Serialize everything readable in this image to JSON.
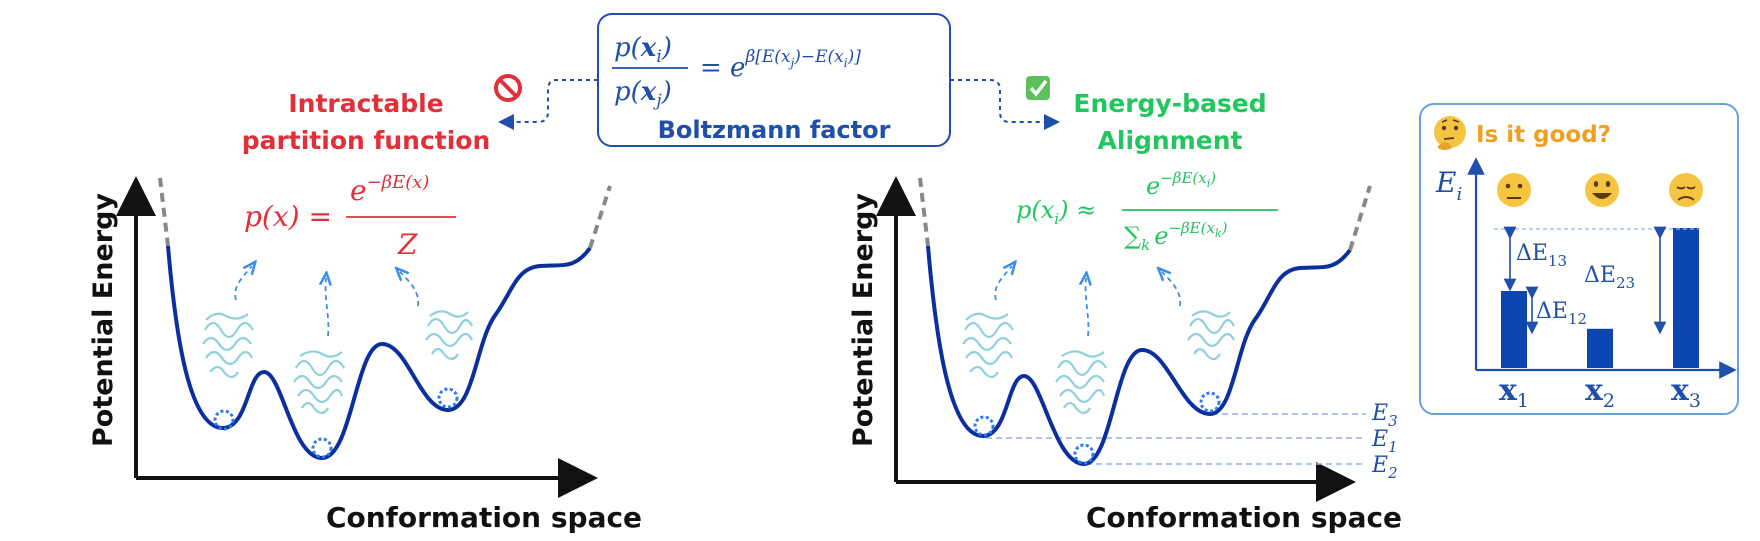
{
  "colors": {
    "red": "#e0303a",
    "green": "#22c55e",
    "blue": "#1f4fa8",
    "dark_blue": "#0b2f9f",
    "navy_bar": "#0a45b0",
    "orange": "#f0a020",
    "protein": "#8fd0dd"
  },
  "boltzmann": {
    "label": "Boltzmann factor",
    "num": "p(",
    "num_x": "x",
    "num_sub": "i",
    "den": "p(",
    "den_x": "x",
    "den_sub": "j",
    "eq": "= e",
    "exp": "β[E(x",
    "exp_j": "j",
    "exp_mid": ")−E(x",
    "exp_i": "i",
    "exp_end": ")]"
  },
  "left_panel": {
    "title_line1": "Intractable",
    "title_line2": "partition function",
    "status_icon": "no-entry-icon",
    "formula_lhs": "p(x) =",
    "formula_num": "e",
    "formula_num_exp": "−βE(x)",
    "formula_den": "Z",
    "y_label": "Potential Energy",
    "x_label": "Conformation space"
  },
  "right_panel": {
    "title_line1": "Energy-based",
    "title_line2": "Alignment",
    "status_icon": "check-mark-icon",
    "formula_lhs": "p(x",
    "formula_lhs_sub": "i",
    "formula_approx": ") ≈",
    "formula_num": "e",
    "formula_num_exp": "−βE(x",
    "formula_num_exp_sub": "i",
    "formula_num_exp_end": ")",
    "formula_den_sum": "∑",
    "formula_den_sum_sub": "k",
    "formula_den": "e",
    "formula_den_exp": "−βE(x",
    "formula_den_exp_sub": "k",
    "formula_den_exp_end": ")",
    "y_label": "Potential Energy",
    "x_label": "Conformation space",
    "levels": [
      {
        "label": "E",
        "sub": "3"
      },
      {
        "label": "E",
        "sub": "1"
      },
      {
        "label": "E",
        "sub": "2"
      }
    ]
  },
  "inset": {
    "title": "Is it good?",
    "title_icon": "thinking-face-icon",
    "y_label": "E",
    "y_label_sub": "i",
    "bars": [
      {
        "label": "x",
        "sub": "1",
        "emoji": "neutral-face-icon",
        "value": 0.55
      },
      {
        "label": "x",
        "sub": "2",
        "emoji": "grinning-face-icon",
        "value": 0.28
      },
      {
        "label": "x",
        "sub": "3",
        "emoji": "sad-face-icon",
        "value": 1.0
      }
    ],
    "deltas": [
      {
        "label": "ΔE",
        "sub": "13"
      },
      {
        "label": "ΔE",
        "sub": "23"
      },
      {
        "label": "ΔE",
        "sub": "12"
      }
    ]
  }
}
